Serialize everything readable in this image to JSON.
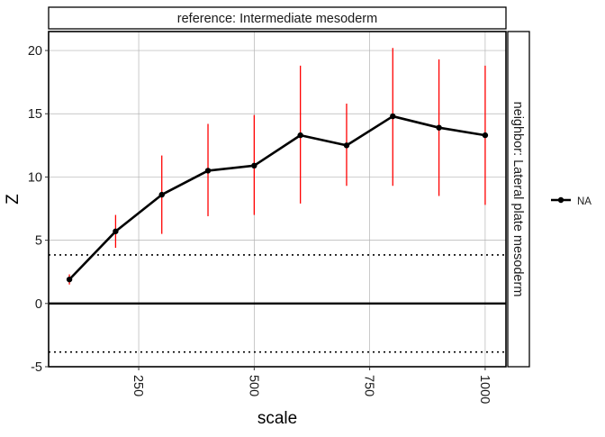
{
  "chart_data": {
    "type": "line",
    "facet_top_label": "reference: Intermediate mesoderm",
    "facet_right_label": "neighbor: Lateral plate mesoderm",
    "xlabel": "scale",
    "ylabel": "Z",
    "xlim": [
      55,
      1045
    ],
    "ylim": [
      -5,
      21.5
    ],
    "x_ticks": [
      250,
      500,
      750,
      1000
    ],
    "y_ticks": [
      -5,
      0,
      5,
      10,
      15,
      20
    ],
    "x_tick_labels": [
      "250",
      "500",
      "750",
      "1000"
    ],
    "y_tick_labels": [
      "-5",
      "0",
      "5",
      "10",
      "15",
      "20"
    ],
    "grid": true,
    "legend": {
      "position": "right",
      "entries": [
        "NA"
      ]
    },
    "reference_lines": [
      {
        "value": 0,
        "style": "solid"
      },
      {
        "value": 3.84,
        "style": "dotted"
      },
      {
        "value": -3.84,
        "style": "dotted"
      }
    ],
    "series": [
      {
        "x": [
          100,
          200,
          300,
          400,
          500,
          600,
          700,
          800,
          900,
          1000
        ],
        "y": [
          1.9,
          5.7,
          8.6,
          10.5,
          10.9,
          13.3,
          12.5,
          14.8,
          13.9,
          13.3
        ],
        "lower": [
          1.5,
          4.4,
          5.5,
          6.9,
          7.0,
          7.9,
          9.3,
          9.3,
          8.5,
          7.8
        ],
        "upper": [
          2.3,
          7.0,
          11.7,
          14.2,
          14.9,
          18.8,
          15.8,
          20.2,
          19.3,
          18.8
        ]
      }
    ],
    "colors": {
      "line": "#000000",
      "errorbar": "#ff0000",
      "grid": "#b3b3b3"
    }
  }
}
